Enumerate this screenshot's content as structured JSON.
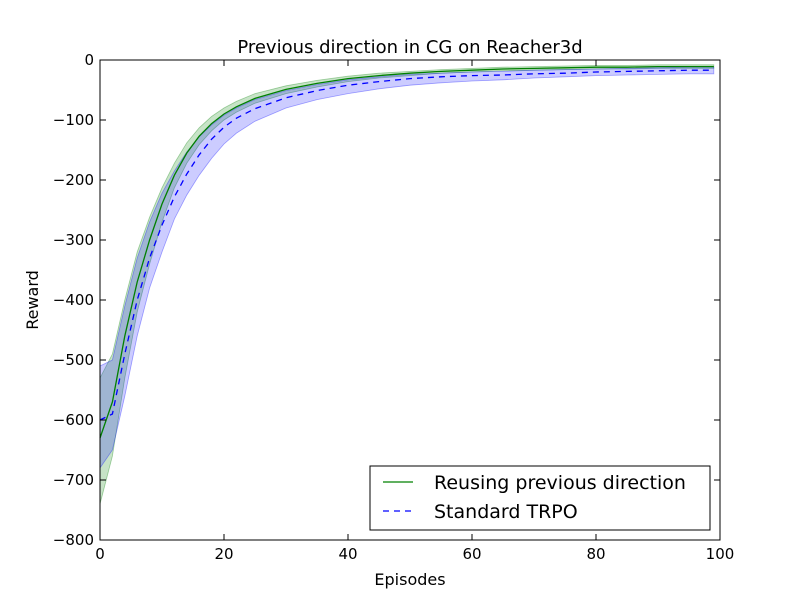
{
  "chart_data": {
    "type": "line",
    "title": "Previous direction in CG on Reacher3d",
    "xlabel": "Episodes",
    "ylabel": "Reward",
    "xlim": [
      0,
      100
    ],
    "ylim": [
      -800,
      0
    ],
    "xticks": [
      0,
      20,
      40,
      60,
      80,
      100
    ],
    "yticks": [
      0,
      -100,
      -200,
      -300,
      -400,
      -500,
      -600,
      -700,
      -800
    ],
    "grid": false,
    "legend_position": "lower-right",
    "x": [
      0,
      2,
      4,
      6,
      8,
      10,
      12,
      14,
      16,
      18,
      20,
      22,
      25,
      30,
      35,
      40,
      45,
      50,
      55,
      60,
      65,
      70,
      75,
      80,
      85,
      90,
      95,
      99
    ],
    "series": [
      {
        "name": "Reusing previous direction",
        "color": "#008000",
        "style": "solid",
        "band_color": "#008000",
        "values": [
          -630,
          -570,
          -460,
          -370,
          -300,
          -240,
          -192,
          -155,
          -127,
          -106,
          -90,
          -78,
          -64,
          -49,
          -39,
          -31,
          -26,
          -22,
          -19,
          -17,
          -15,
          -14,
          -13,
          -12,
          -12,
          -11,
          -11,
          -11
        ],
        "lower": [
          -740,
          -660,
          -530,
          -420,
          -340,
          -270,
          -213,
          -172,
          -141,
          -118,
          -100,
          -87,
          -72,
          -56,
          -45,
          -36,
          -30,
          -26,
          -22,
          -20,
          -18,
          -17,
          -16,
          -15,
          -15,
          -14,
          -14,
          -14
        ],
        "upper": [
          -530,
          -490,
          -400,
          -320,
          -262,
          -213,
          -172,
          -138,
          -113,
          -94,
          -80,
          -69,
          -56,
          -43,
          -34,
          -27,
          -22,
          -19,
          -16,
          -14,
          -12,
          -11,
          -10,
          -9,
          -9,
          -8,
          -8,
          -8
        ]
      },
      {
        "name": "Standard TRPO",
        "color": "#0000ff",
        "style": "dashed",
        "band_color": "#0000ff",
        "values": [
          -600,
          -590,
          -490,
          -400,
          -330,
          -275,
          -228,
          -190,
          -158,
          -132,
          -112,
          -97,
          -81,
          -63,
          -51,
          -42,
          -36,
          -31,
          -28,
          -26,
          -25,
          -23,
          -22,
          -20,
          -19,
          -18,
          -17,
          -17
        ],
        "lower": [
          -680,
          -650,
          -560,
          -460,
          -380,
          -320,
          -265,
          -225,
          -192,
          -164,
          -140,
          -122,
          -102,
          -80,
          -66,
          -56,
          -48,
          -42,
          -38,
          -35,
          -33,
          -30,
          -28,
          -26,
          -25,
          -24,
          -23,
          -23
        ],
        "upper": [
          -510,
          -500,
          -410,
          -330,
          -270,
          -222,
          -185,
          -153,
          -128,
          -108,
          -92,
          -80,
          -66,
          -51,
          -41,
          -33,
          -28,
          -24,
          -22,
          -20,
          -19,
          -17,
          -16,
          -15,
          -14,
          -13,
          -12,
          -12
        ]
      }
    ]
  }
}
